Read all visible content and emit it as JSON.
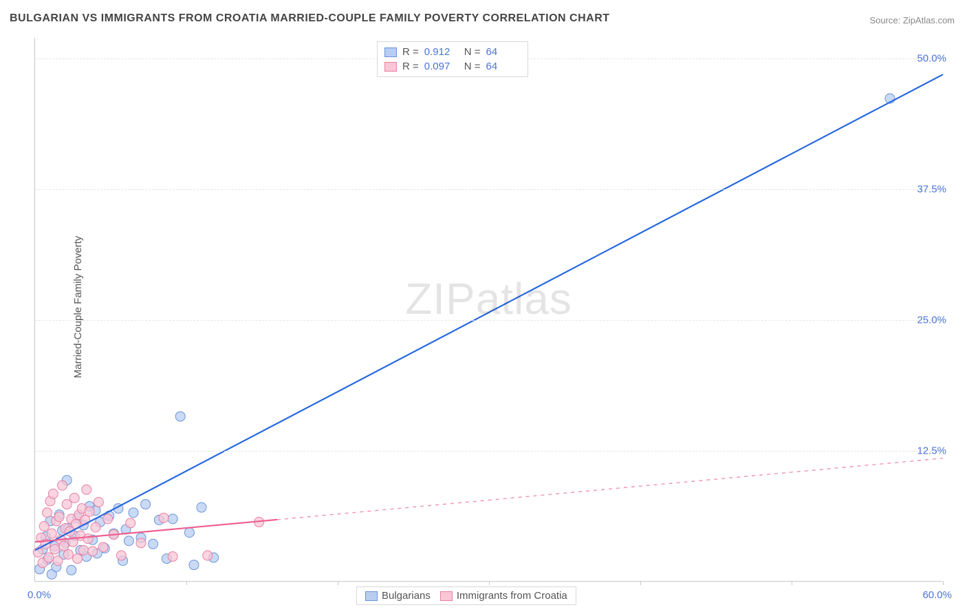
{
  "title": "BULGARIAN VS IMMIGRANTS FROM CROATIA MARRIED-COUPLE FAMILY POVERTY CORRELATION CHART",
  "source": "Source: ZipAtlas.com",
  "ylabel": "Married-Couple Family Poverty",
  "watermark": "ZIPatlas",
  "chart": {
    "type": "scatter",
    "xlim": [
      0,
      60
    ],
    "ylim": [
      0,
      52
    ],
    "ytick_values": [
      12.5,
      25.0,
      37.5,
      50.0
    ],
    "ytick_labels": [
      "12.5%",
      "25.0%",
      "37.5%",
      "50.0%"
    ],
    "xtick_values": [
      0,
      10,
      20,
      30,
      40,
      50,
      60
    ],
    "x_origin_label": "0.0%",
    "x_max_label": "60.0%",
    "background_color": "#ffffff",
    "grid_color": "#e5e5e5",
    "axis_color": "#c8c8c8",
    "series": [
      {
        "name": "Bulgarians",
        "marker_fill": "#b8cdf0",
        "marker_stroke": "#6a93d8",
        "marker_radius": 7,
        "line_color": "#2668e0",
        "line_width": 2.2,
        "trend": {
          "x1": 0,
          "y1": 3.0,
          "x2": 60,
          "y2": 48.5,
          "solid_until_x": 60
        },
        "R": "0.912",
        "N": "64",
        "points": [
          [
            0.3,
            1.2
          ],
          [
            0.5,
            3.1
          ],
          [
            0.7,
            4.3
          ],
          [
            0.8,
            2.1
          ],
          [
            1.0,
            5.8
          ],
          [
            1.1,
            0.7
          ],
          [
            1.3,
            3.4
          ],
          [
            1.4,
            1.4
          ],
          [
            1.6,
            6.4
          ],
          [
            1.8,
            4.9
          ],
          [
            1.9,
            2.6
          ],
          [
            2.0,
            3.7
          ],
          [
            2.1,
            9.7
          ],
          [
            2.2,
            5.1
          ],
          [
            2.4,
            1.1
          ],
          [
            2.6,
            4.4
          ],
          [
            2.8,
            6.1
          ],
          [
            3.0,
            3.0
          ],
          [
            3.2,
            5.4
          ],
          [
            3.4,
            2.4
          ],
          [
            3.6,
            7.2
          ],
          [
            3.8,
            4.0
          ],
          [
            4.0,
            6.8
          ],
          [
            4.1,
            2.7
          ],
          [
            4.3,
            5.7
          ],
          [
            4.6,
            3.2
          ],
          [
            4.9,
            6.3
          ],
          [
            5.2,
            4.6
          ],
          [
            5.5,
            7.0
          ],
          [
            5.8,
            2.0
          ],
          [
            6.0,
            5.0
          ],
          [
            6.2,
            3.9
          ],
          [
            6.5,
            6.6
          ],
          [
            7.0,
            4.2
          ],
          [
            7.3,
            7.4
          ],
          [
            7.8,
            3.6
          ],
          [
            8.2,
            5.9
          ],
          [
            8.7,
            2.2
          ],
          [
            9.1,
            6.0
          ],
          [
            9.6,
            15.8
          ],
          [
            10.2,
            4.7
          ],
          [
            10.5,
            1.6
          ],
          [
            11.0,
            7.1
          ],
          [
            11.8,
            2.3
          ],
          [
            56.5,
            46.2
          ]
        ]
      },
      {
        "name": "Immigrants from Croatia",
        "marker_fill": "#f7c7d5",
        "marker_stroke": "#e87ea4",
        "marker_radius": 7,
        "line_color": "#ef5f90",
        "line_width": 2.2,
        "trend": {
          "x1": 0,
          "y1": 3.8,
          "x2": 60,
          "y2": 11.8,
          "solid_until_x": 16
        },
        "R": "0.097",
        "N": "64",
        "points": [
          [
            0.2,
            2.8
          ],
          [
            0.4,
            4.2
          ],
          [
            0.5,
            1.8
          ],
          [
            0.6,
            5.3
          ],
          [
            0.7,
            3.6
          ],
          [
            0.8,
            6.6
          ],
          [
            0.9,
            2.3
          ],
          [
            1.0,
            7.7
          ],
          [
            1.1,
            4.6
          ],
          [
            1.2,
            8.4
          ],
          [
            1.3,
            3.1
          ],
          [
            1.4,
            5.8
          ],
          [
            1.5,
            2.0
          ],
          [
            1.6,
            6.2
          ],
          [
            1.7,
            4.0
          ],
          [
            1.8,
            9.2
          ],
          [
            1.9,
            3.4
          ],
          [
            2.0,
            5.1
          ],
          [
            2.1,
            7.4
          ],
          [
            2.2,
            2.6
          ],
          [
            2.3,
            4.8
          ],
          [
            2.4,
            6.0
          ],
          [
            2.5,
            3.8
          ],
          [
            2.6,
            8.0
          ],
          [
            2.7,
            5.5
          ],
          [
            2.8,
            2.2
          ],
          [
            2.9,
            6.4
          ],
          [
            3.0,
            4.4
          ],
          [
            3.1,
            7.0
          ],
          [
            3.2,
            3.0
          ],
          [
            3.3,
            5.9
          ],
          [
            3.4,
            8.8
          ],
          [
            3.5,
            4.1
          ],
          [
            3.6,
            6.7
          ],
          [
            3.8,
            2.9
          ],
          [
            4.0,
            5.2
          ],
          [
            4.2,
            7.6
          ],
          [
            4.5,
            3.3
          ],
          [
            4.8,
            6.0
          ],
          [
            5.2,
            4.5
          ],
          [
            5.7,
            2.5
          ],
          [
            6.3,
            5.6
          ],
          [
            7.0,
            3.7
          ],
          [
            8.5,
            6.1
          ],
          [
            9.1,
            2.4
          ],
          [
            11.4,
            2.5
          ],
          [
            14.8,
            5.7
          ]
        ]
      }
    ]
  },
  "stat_box": {
    "rows": [
      {
        "swatch_fill": "#b8cdf0",
        "swatch_stroke": "#6a93d8",
        "r_label": "R =",
        "r_val": "0.912",
        "n_label": "N =",
        "n_val": "64"
      },
      {
        "swatch_fill": "#f7c7d5",
        "swatch_stroke": "#e87ea4",
        "r_label": "R =",
        "r_val": "0.097",
        "n_label": "N =",
        "n_val": "64"
      }
    ]
  },
  "legend": {
    "items": [
      {
        "swatch_fill": "#b8cdf0",
        "swatch_stroke": "#6a93d8",
        "label": "Bulgarians"
      },
      {
        "swatch_fill": "#f7c7d5",
        "swatch_stroke": "#e87ea4",
        "label": "Immigrants from Croatia"
      }
    ]
  }
}
